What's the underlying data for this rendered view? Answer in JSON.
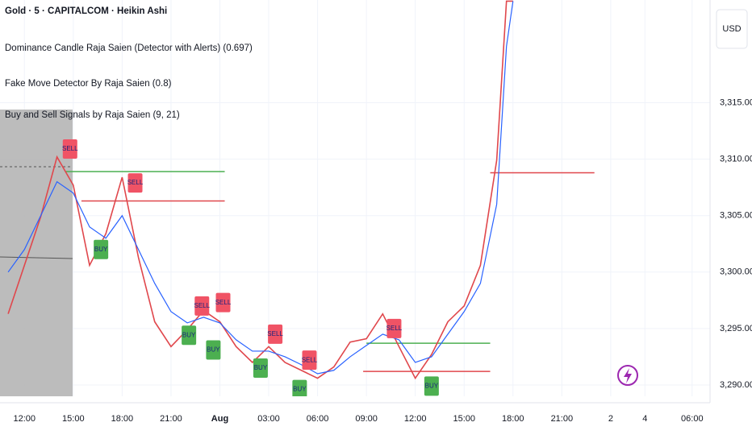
{
  "chart_data": {
    "type": "line",
    "title": "Gold · 5 · CAPITALCOM · Heikin Ashi",
    "indicators": [
      "Dominance Candle Raja Saien (Detector with Alerts) (0.697)",
      "Fake Move Detector By Raja Saien (0.8)",
      "Buy and Sell Signals by Raja Saien (9, 21)"
    ],
    "currency": "USD",
    "xlim": [
      -1.5,
      42.1
    ],
    "ylim": [
      3289,
      3324.1
    ],
    "xticks": [
      {
        "value": 0,
        "label": "12:00"
      },
      {
        "value": 3,
        "label": "15:00"
      },
      {
        "value": 6,
        "label": "18:00"
      },
      {
        "value": 9,
        "label": "21:00"
      },
      {
        "value": 12,
        "label": "Aug"
      },
      {
        "value": 15,
        "label": "03:00"
      },
      {
        "value": 18,
        "label": "06:00"
      },
      {
        "value": 21,
        "label": "09:00"
      },
      {
        "value": 24,
        "label": "12:00"
      },
      {
        "value": 27,
        "label": "15:00"
      },
      {
        "value": 30,
        "label": "18:00"
      },
      {
        "value": 33,
        "label": "21:00"
      },
      {
        "value": 36,
        "label": "2"
      },
      {
        "value": 38.1,
        "label": "4"
      },
      {
        "value": 41,
        "label": "06:00"
      }
    ],
    "yticks": [
      {
        "value": 3290,
        "label": "3,290.00"
      },
      {
        "value": 3295,
        "label": "3,295.00"
      },
      {
        "value": 3300,
        "label": "3,300.00"
      },
      {
        "value": 3305,
        "label": "3,305.00"
      },
      {
        "value": 3310,
        "label": "3,310.00"
      },
      {
        "value": 3315,
        "label": "3,315.00"
      }
    ],
    "grid": true,
    "x": [
      -1,
      0,
      1,
      2,
      3,
      4,
      5,
      6,
      7,
      8,
      9,
      10,
      11,
      12,
      13,
      14,
      15,
      16,
      17,
      18,
      19,
      20,
      21,
      22,
      23,
      24,
      25,
      26,
      27,
      28,
      29,
      29.6,
      30
    ],
    "series": [
      {
        "color": "#e0474c",
        "values": [
          3296.3,
          3300.6,
          3304.9,
          3310.2,
          3307.7,
          3300.6,
          3303.4,
          3308.4,
          3301.3,
          3295.6,
          3293.4,
          3294.9,
          3296.6,
          3295.6,
          3293.4,
          3292,
          3293.4,
          3292,
          3291.3,
          3290.6,
          3291.6,
          3293.8,
          3294.1,
          3296.3,
          3293.4,
          3290.6,
          3292.7,
          3295.6,
          3297,
          3300.6,
          3309.9,
          3324,
          3324
        ]
      },
      {
        "color": "#2962ff",
        "values": [
          3300,
          3302,
          3305,
          3308,
          3307,
          3304,
          3303,
          3305,
          3302,
          3299,
          3296.5,
          3295.5,
          3296,
          3295.5,
          3294,
          3293,
          3293,
          3292.5,
          3291.8,
          3291,
          3291.3,
          3292.5,
          3293.5,
          3294.5,
          3294,
          3292,
          3292.5,
          3294.5,
          3296.5,
          3299,
          3306,
          3320,
          3324
        ]
      }
    ],
    "levels": [
      {
        "value": 3308.9,
        "x": [
          2.5,
          12.3
        ],
        "color": "#4caf50"
      },
      {
        "value": 3306.3,
        "x": [
          3.5,
          12.3
        ],
        "color": "#e0474c"
      },
      {
        "value": 3293.7,
        "x": [
          21,
          28.6
        ],
        "color": "#4caf50"
      },
      {
        "value": 3291.2,
        "x": [
          20.8,
          28.6
        ],
        "color": "#e0474c"
      },
      {
        "value": 3308.8,
        "x": [
          28.6,
          35
        ],
        "color": "#e0474c"
      }
    ],
    "signals": [
      {
        "label": "SELL",
        "x": 2.8,
        "value": 3310.9,
        "color": "#f05365"
      },
      {
        "label": "BUY",
        "x": 4.7,
        "value": 3302,
        "color": "#4caf50"
      },
      {
        "label": "SELL",
        "x": 6.8,
        "value": 3307.9,
        "color": "#f05365"
      },
      {
        "label": "BUY",
        "x": 10.1,
        "value": 3294.4,
        "color": "#4caf50"
      },
      {
        "label": "SELL",
        "x": 10.9,
        "value": 3297,
        "color": "#f05365"
      },
      {
        "label": "BUY",
        "x": 11.6,
        "value": 3293.1,
        "color": "#4caf50"
      },
      {
        "label": "SELL",
        "x": 12.2,
        "value": 3297.3,
        "color": "#f05365"
      },
      {
        "label": "BUY",
        "x": 14.5,
        "value": 3291.5,
        "color": "#4caf50"
      },
      {
        "label": "SELL",
        "x": 15.4,
        "value": 3294.5,
        "color": "#f05365"
      },
      {
        "label": "BUY",
        "x": 16.9,
        "value": 3289.6,
        "color": "#4caf50"
      },
      {
        "label": "SELL",
        "x": 17.5,
        "value": 3292.2,
        "color": "#f05365"
      },
      {
        "label": "SELL",
        "x": 22.7,
        "value": 3295,
        "color": "#f05365"
      },
      {
        "label": "BUY",
        "x": 25,
        "value": 3289.9,
        "color": "#4caf50"
      }
    ]
  }
}
